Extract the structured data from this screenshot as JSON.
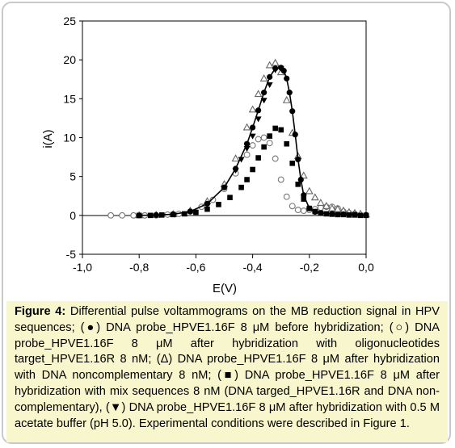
{
  "chart_data": {
    "type": "scatter",
    "xlabel": "E(V)",
    "ylabel": "i(A)",
    "xlim": [
      -1.0,
      0.0
    ],
    "ylim": [
      -5,
      25
    ],
    "xticks": [
      "-1,0",
      "-0,8",
      "-0,6",
      "-0,4",
      "-0,2",
      "0,0"
    ],
    "yticks": [
      "-5",
      "0",
      "5",
      "10",
      "15",
      "20",
      "25"
    ],
    "grid": false,
    "legend": "none",
    "series": [
      {
        "marker": "filled-circle",
        "line": true,
        "color": "#000000",
        "x": [
          -0.8,
          -0.74,
          -0.68,
          -0.62,
          -0.56,
          -0.5,
          -0.46,
          -0.42,
          -0.4,
          -0.38,
          -0.36,
          -0.34,
          -0.32,
          -0.3,
          -0.29,
          -0.28,
          -0.27,
          -0.26,
          -0.25,
          -0.24,
          -0.23,
          -0.22,
          -0.2,
          -0.18,
          -0.16,
          -0.12,
          -0.08,
          -0.04,
          0.0
        ],
        "y": [
          0.0,
          0.05,
          0.15,
          0.5,
          1.5,
          3.6,
          6.0,
          9.2,
          11.3,
          13.5,
          15.8,
          17.8,
          18.9,
          19.0,
          18.6,
          17.6,
          15.8,
          13.4,
          10.4,
          7.2,
          4.6,
          2.6,
          0.9,
          0.45,
          0.3,
          0.2,
          0.15,
          0.1,
          0.05
        ]
      },
      {
        "marker": "open-circle",
        "line": false,
        "color": "#777777",
        "x": [
          -0.9,
          -0.86,
          -0.82,
          -0.78,
          -0.74,
          -0.7,
          -0.66,
          -0.62,
          -0.58,
          -0.54,
          -0.5,
          -0.46,
          -0.42,
          -0.4,
          -0.38,
          -0.36,
          -0.34,
          -0.32,
          -0.3,
          -0.28,
          -0.26,
          -0.24,
          -0.22,
          -0.2,
          -0.18,
          -0.16,
          -0.14,
          -0.12,
          -0.1,
          -0.08,
          -0.06,
          -0.04
        ],
        "y": [
          0.0,
          0.0,
          0.0,
          0.0,
          0.0,
          0.1,
          0.2,
          0.5,
          1.1,
          2.0,
          3.4,
          5.4,
          7.8,
          9.0,
          9.8,
          10.0,
          9.3,
          7.3,
          4.6,
          2.4,
          1.2,
          0.7,
          0.6,
          0.7,
          0.8,
          1.0,
          1.1,
          1.1,
          0.9,
          0.5,
          0.3,
          0.2
        ]
      },
      {
        "marker": "open-triangle",
        "line": false,
        "color": "#666666",
        "x": [
          -0.8,
          -0.74,
          -0.68,
          -0.62,
          -0.56,
          -0.5,
          -0.46,
          -0.42,
          -0.4,
          -0.38,
          -0.36,
          -0.34,
          -0.32,
          -0.3,
          -0.28,
          -0.26,
          -0.24,
          -0.22,
          -0.2,
          -0.18,
          -0.16,
          -0.14,
          -0.12,
          -0.1,
          -0.08,
          -0.06,
          -0.04,
          -0.02,
          0.0
        ],
        "y": [
          0.0,
          0.05,
          0.15,
          0.6,
          1.8,
          4.0,
          7.3,
          11.3,
          13.6,
          15.6,
          17.6,
          19.3,
          19.6,
          18.4,
          14.8,
          10.6,
          7.6,
          5.1,
          3.1,
          2.3,
          1.6,
          1.2,
          0.9,
          0.8,
          0.6,
          0.4,
          0.3,
          0.2,
          0.1
        ]
      },
      {
        "marker": "filled-square",
        "line": false,
        "color": "#000000",
        "x": [
          -0.8,
          -0.76,
          -0.72,
          -0.68,
          -0.64,
          -0.6,
          -0.56,
          -0.52,
          -0.48,
          -0.44,
          -0.42,
          -0.4,
          -0.38,
          -0.36,
          -0.34,
          -0.32,
          -0.3,
          -0.28,
          -0.26,
          -0.24,
          -0.22,
          -0.2,
          -0.18,
          -0.16,
          -0.14,
          -0.12,
          -0.1,
          -0.08,
          -0.06,
          -0.04,
          -0.02,
          0.0
        ],
        "y": [
          0.0,
          0.0,
          0.05,
          0.1,
          0.2,
          0.4,
          0.8,
          1.4,
          2.3,
          3.6,
          4.6,
          5.9,
          7.4,
          8.8,
          10.2,
          11.2,
          11.0,
          9.2,
          6.7,
          4.0,
          2.1,
          0.9,
          0.5,
          0.3,
          0.2,
          0.15,
          0.1,
          0.1,
          0.05,
          0.05,
          0.0,
          0.0
        ]
      },
      {
        "marker": "filled-down-triangle",
        "line": false,
        "color": "#000000",
        "x": [
          -0.46,
          -0.44,
          -0.42,
          -0.4,
          -0.38,
          -0.36,
          -0.34,
          -0.32,
          -0.3
        ],
        "y": [
          5.8,
          7.2,
          8.6,
          10.2,
          12.4,
          14.8,
          16.8,
          18.7,
          18.9
        ]
      }
    ]
  },
  "caption": {
    "label": "Figure 4:",
    "text": " Differential pulse voltammograms on the MB reduction signal in HPV sequences; (●) DNA probe_HPVE1.16F 8 μM before hybridization; (○) DNA probe_HPVE1.16F 8 μM after hybridization with oligonucleotides target_HPVE1.16R 8 nM; (Δ) DNA probe_HPVE1.16F 8 μM after hybridization with DNA noncomplementary 8 nM; (■) DNA probe_HPVE1.16F 8 μM after hybridization with mix sequences 8 nM (DNA targed_HPVE1.16R and DNA non-complementary), (▼) DNA probe_HPVE1.16F 8 μM after hybridization with 0.5 M acetate buffer (pH 5.0). Experimental conditions were described in Figure 1."
  }
}
